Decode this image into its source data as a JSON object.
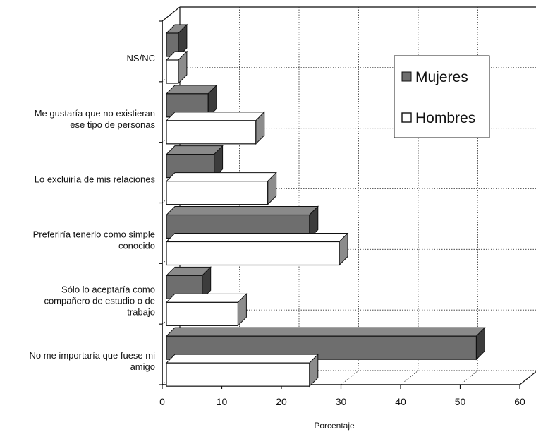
{
  "chart_data": {
    "type": "bar",
    "orientation": "horizontal",
    "style": "3d",
    "categories": [
      [
        "NS/NC"
      ],
      [
        "Me gustaría que no existieran",
        "ese tipo de personas"
      ],
      [
        "Lo excluiría de mis relaciones"
      ],
      [
        "Preferiría tenerlo como simple",
        "conocido"
      ],
      [
        "Sólo lo aceptaría como",
        "compañero de estudio o de",
        "trabajo"
      ],
      [
        "No me importaría que fuese mi",
        "amigo"
      ]
    ],
    "series": [
      {
        "name": "Mujeres",
        "values": [
          2,
          7,
          8,
          24,
          6,
          52
        ],
        "color": "#6e6e6e"
      },
      {
        "name": "Hombres",
        "values": [
          2,
          15,
          17,
          29,
          12,
          24
        ],
        "color": "#ffffff"
      }
    ],
    "xlabel": "Porcentaje",
    "xlim": [
      0,
      60
    ],
    "xticks": [
      "0",
      "10",
      "20",
      "30",
      "40",
      "50",
      "60"
    ],
    "grid": true,
    "legend_position": "right"
  }
}
